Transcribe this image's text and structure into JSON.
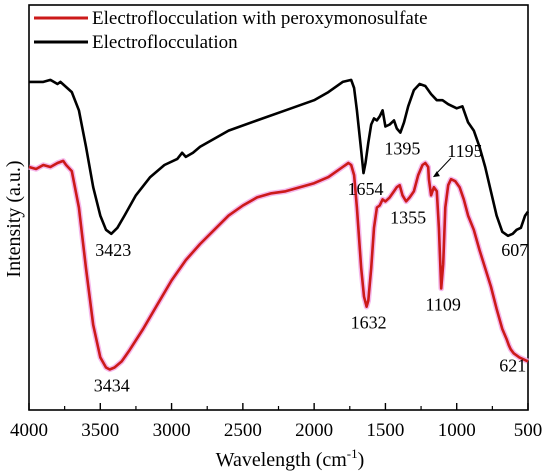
{
  "chart_data": {
    "type": "line",
    "xlabel": "Wavelength (cm",
    "xlabel_sup": "-1",
    "xlabel_close": ")",
    "ylabel": "Intensity (a.u.)",
    "xlim": [
      4000,
      500
    ],
    "x_reversed": true,
    "ylim": [
      0,
      100
    ],
    "y_ticks_labeled": false,
    "x_ticks": [
      "4000",
      "3500",
      "3000",
      "2500",
      "2000",
      "1500",
      "1000",
      "500"
    ],
    "x_tick_values": [
      4000,
      3500,
      3000,
      2500,
      2000,
      1500,
      1000,
      500
    ],
    "grid": false,
    "legend": {
      "placement": "top-left",
      "entries": [
        {
          "label": "Electroflocculation with peroxymonosulfate",
          "color": "#cc1a1a"
        },
        {
          "label": "Electroflocculation",
          "color": "#000000"
        }
      ]
    },
    "series": [
      {
        "name": "Electroflocculation",
        "color": "#000000",
        "points": [
          [
            4000,
            81
          ],
          [
            3900,
            81
          ],
          [
            3850,
            81.5
          ],
          [
            3800,
            80.5
          ],
          [
            3780,
            81
          ],
          [
            3700,
            78.5
          ],
          [
            3650,
            74
          ],
          [
            3600,
            65
          ],
          [
            3550,
            55
          ],
          [
            3500,
            48
          ],
          [
            3460,
            44.5
          ],
          [
            3423,
            43.5
          ],
          [
            3380,
            45
          ],
          [
            3330,
            48
          ],
          [
            3250,
            53
          ],
          [
            3150,
            57.5
          ],
          [
            3050,
            60.5
          ],
          [
            2960,
            62
          ],
          [
            2926,
            63.5
          ],
          [
            2900,
            62.5
          ],
          [
            2850,
            63.5
          ],
          [
            2800,
            65
          ],
          [
            2600,
            69
          ],
          [
            2400,
            71.5
          ],
          [
            2200,
            74
          ],
          [
            2000,
            76.5
          ],
          [
            1900,
            78.5
          ],
          [
            1800,
            81
          ],
          [
            1740,
            81.5
          ],
          [
            1720,
            79.5
          ],
          [
            1700,
            74
          ],
          [
            1670,
            64
          ],
          [
            1654,
            58.5
          ],
          [
            1640,
            61
          ],
          [
            1620,
            66
          ],
          [
            1600,
            70.5
          ],
          [
            1580,
            72
          ],
          [
            1560,
            71.5
          ],
          [
            1540,
            72.5
          ],
          [
            1520,
            74
          ],
          [
            1500,
            70
          ],
          [
            1470,
            70.5
          ],
          [
            1440,
            71.5
          ],
          [
            1420,
            69.5
          ],
          [
            1395,
            68.5
          ],
          [
            1370,
            71
          ],
          [
            1340,
            75
          ],
          [
            1300,
            79
          ],
          [
            1260,
            80.5
          ],
          [
            1220,
            80
          ],
          [
            1180,
            78
          ],
          [
            1140,
            76.5
          ],
          [
            1100,
            76.5
          ],
          [
            1060,
            75.5
          ],
          [
            1000,
            74.5
          ],
          [
            960,
            75
          ],
          [
            920,
            71
          ],
          [
            880,
            69
          ],
          [
            840,
            65
          ],
          [
            800,
            60
          ],
          [
            760,
            54
          ],
          [
            720,
            48
          ],
          [
            680,
            44
          ],
          [
            640,
            43
          ],
          [
            607,
            43.5
          ],
          [
            580,
            44.5
          ],
          [
            550,
            45
          ],
          [
            520,
            48
          ],
          [
            500,
            49
          ]
        ]
      },
      {
        "name": "Electroflocculation with peroxymonosulfate",
        "color": "#cc1a1a",
        "points": [
          [
            4000,
            60
          ],
          [
            3950,
            59.5
          ],
          [
            3900,
            60.5
          ],
          [
            3850,
            60
          ],
          [
            3800,
            61
          ],
          [
            3760,
            61.5
          ],
          [
            3740,
            60.5
          ],
          [
            3700,
            59
          ],
          [
            3650,
            50
          ],
          [
            3600,
            35
          ],
          [
            3550,
            21
          ],
          [
            3500,
            13
          ],
          [
            3460,
            10.5
          ],
          [
            3434,
            10
          ],
          [
            3400,
            10.5
          ],
          [
            3350,
            12
          ],
          [
            3300,
            14.5
          ],
          [
            3200,
            20
          ],
          [
            3100,
            26
          ],
          [
            3000,
            32
          ],
          [
            2900,
            37
          ],
          [
            2800,
            41
          ],
          [
            2700,
            44.5
          ],
          [
            2600,
            48
          ],
          [
            2500,
            50.5
          ],
          [
            2400,
            52.5
          ],
          [
            2300,
            53.5
          ],
          [
            2200,
            54
          ],
          [
            2100,
            55
          ],
          [
            2000,
            56
          ],
          [
            1900,
            57.5
          ],
          [
            1800,
            60
          ],
          [
            1760,
            61
          ],
          [
            1740,
            60.5
          ],
          [
            1720,
            58
          ],
          [
            1700,
            50
          ],
          [
            1670,
            35
          ],
          [
            1650,
            28
          ],
          [
            1632,
            25.5
          ],
          [
            1620,
            27
          ],
          [
            1600,
            35
          ],
          [
            1580,
            45
          ],
          [
            1560,
            50
          ],
          [
            1540,
            50.5
          ],
          [
            1520,
            52
          ],
          [
            1500,
            51.5
          ],
          [
            1470,
            52.5
          ],
          [
            1440,
            54
          ],
          [
            1420,
            55
          ],
          [
            1400,
            55.5
          ],
          [
            1380,
            53
          ],
          [
            1355,
            51.5
          ],
          [
            1330,
            52.5
          ],
          [
            1300,
            54
          ],
          [
            1270,
            58
          ],
          [
            1240,
            60.5
          ],
          [
            1220,
            61
          ],
          [
            1200,
            60
          ],
          [
            1195,
            57
          ],
          [
            1180,
            53
          ],
          [
            1160,
            55
          ],
          [
            1140,
            54
          ],
          [
            1125,
            45
          ],
          [
            1109,
            30
          ],
          [
            1095,
            36
          ],
          [
            1080,
            50
          ],
          [
            1060,
            55.5
          ],
          [
            1040,
            57
          ],
          [
            1010,
            56.5
          ],
          [
            980,
            55
          ],
          [
            950,
            52
          ],
          [
            920,
            48
          ],
          [
            880,
            44.5
          ],
          [
            840,
            39.5
          ],
          [
            800,
            35
          ],
          [
            760,
            30.5
          ],
          [
            720,
            25
          ],
          [
            680,
            20
          ],
          [
            650,
            17.5
          ],
          [
            635,
            16
          ],
          [
            621,
            15
          ],
          [
            600,
            14
          ],
          [
            560,
            13
          ],
          [
            530,
            12.5
          ],
          [
            500,
            12
          ]
        ]
      }
    ],
    "annotations": [
      {
        "text": "3423",
        "x": 3423,
        "y": 43.5,
        "series": "Electroflocculation",
        "pos": "below"
      },
      {
        "text": "1654",
        "x": 1654,
        "y": 58.5,
        "series": "Electroflocculation",
        "pos": "below"
      },
      {
        "text": "1395",
        "x": 1395,
        "y": 68.5,
        "series": "Electroflocculation",
        "pos": "below"
      },
      {
        "text": "607",
        "x": 607,
        "y": 43.5,
        "series": "Electroflocculation",
        "pos": "below"
      },
      {
        "text": "3434",
        "x": 3434,
        "y": 10,
        "series": "Electroflocculation with peroxymonosulfate",
        "pos": "below"
      },
      {
        "text": "1632",
        "x": 1632,
        "y": 25.5,
        "series": "Electroflocculation with peroxymonosulfate",
        "pos": "below"
      },
      {
        "text": "1355",
        "x": 1355,
        "y": 51.5,
        "series": "Electroflocculation with peroxymonosulfate",
        "pos": "below"
      },
      {
        "text": "1109",
        "x": 1109,
        "y": 30,
        "series": "Electroflocculation with peroxymonosulfate",
        "pos": "below"
      },
      {
        "text": "1195",
        "x": 1195,
        "y": 57,
        "series": "Electroflocculation with peroxymonosulfate",
        "pos": "above-arrow"
      },
      {
        "text": "621",
        "x": 621,
        "y": 15,
        "series": "Electroflocculation with peroxymonosulfate",
        "pos": "below"
      }
    ]
  }
}
